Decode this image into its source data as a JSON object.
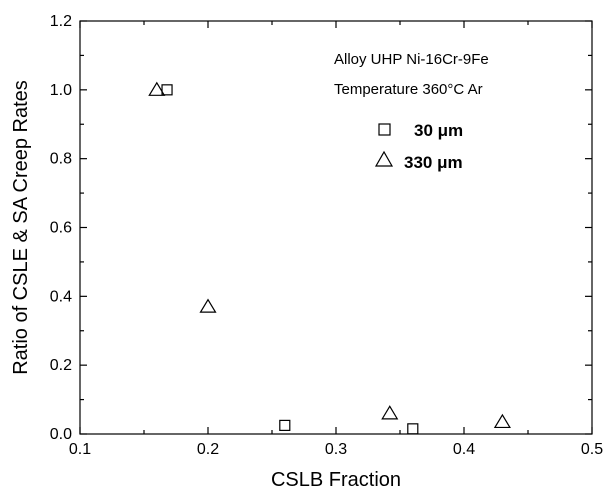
{
  "chart_data": {
    "type": "scatter",
    "xlabel": "CSLB Fraction",
    "ylabel": "Ratio of CSLE & SA Creep Rates",
    "xlim": [
      0.1,
      0.5
    ],
    "ylim": [
      0.0,
      1.2
    ],
    "x_ticks": [
      "0.1",
      "0.2",
      "0.3",
      "0.4",
      "0.5"
    ],
    "y_ticks": [
      "0.0",
      "0.2",
      "0.4",
      "0.6",
      "0.8",
      "1.0",
      "1.2"
    ],
    "grid": false,
    "annotations": [
      "Alloy UHP Ni-16Cr-9Fe",
      "Temperature 360°C Ar"
    ],
    "legend_position": "top-right",
    "series": [
      {
        "name": "30 μm",
        "marker": "square",
        "points": [
          {
            "x": 0.168,
            "y": 1.0
          },
          {
            "x": 0.26,
            "y": 0.025
          },
          {
            "x": 0.36,
            "y": 0.015
          }
        ]
      },
      {
        "name": "330 μm",
        "marker": "triangle",
        "points": [
          {
            "x": 0.16,
            "y": 1.0
          },
          {
            "x": 0.2,
            "y": 0.37
          },
          {
            "x": 0.342,
            "y": 0.06
          },
          {
            "x": 0.43,
            "y": 0.035
          }
        ]
      }
    ]
  }
}
